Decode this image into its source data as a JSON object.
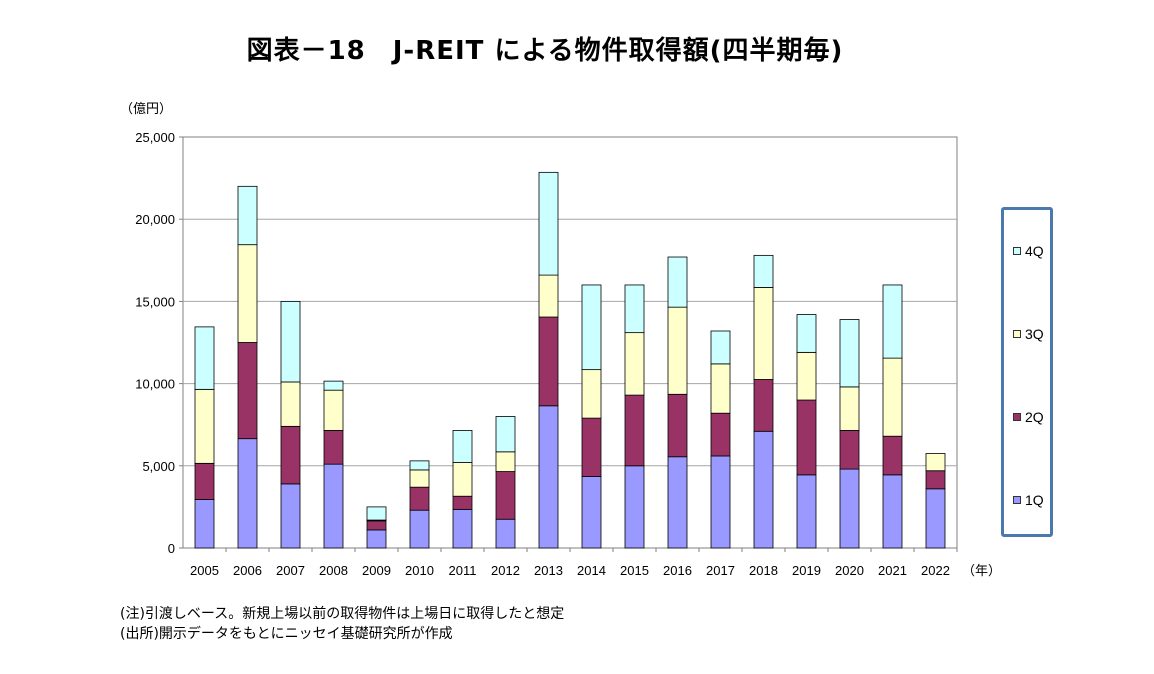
{
  "title": "図表－18　J-REIT による物件取得額(四半期毎)",
  "notes": {
    "note": "(注)引渡しベース。新規上場以前の取得物件は上場日に取得したと想定",
    "source": "(出所)開示データをもとにニッセイ基礎研究所が作成"
  },
  "chart_data": {
    "type": "bar",
    "stacked": true,
    "title": "図表－18　J-REIT による物件取得額(四半期毎)",
    "ylabel": "（億円）",
    "xlabel": "（年）",
    "ylim": [
      0,
      25000
    ],
    "yticks": [
      0,
      5000,
      10000,
      15000,
      20000,
      25000
    ],
    "ytick_labels": [
      "0",
      "5,000",
      "10,000",
      "15,000",
      "20,000",
      "25,000"
    ],
    "grid": true,
    "legend_position": "right",
    "categories": [
      "2005",
      "2006",
      "2007",
      "2008",
      "2009",
      "2010",
      "2011",
      "2012",
      "2013",
      "2014",
      "2015",
      "2016",
      "2017",
      "2018",
      "2019",
      "2020",
      "2021",
      "2022"
    ],
    "series": [
      {
        "name": "1Q",
        "color": "#9999ff",
        "values": [
          2950,
          6650,
          3900,
          5100,
          1100,
          2300,
          2350,
          1750,
          8650,
          4350,
          5000,
          5550,
          5600,
          7100,
          4450,
          4800,
          4450,
          3600
        ]
      },
      {
        "name": "2Q",
        "color": "#993366",
        "values": [
          2200,
          5850,
          3500,
          2050,
          550,
          1400,
          800,
          2900,
          5400,
          3550,
          4300,
          3800,
          2600,
          3150,
          4550,
          2350,
          2350,
          1100
        ]
      },
      {
        "name": "3Q",
        "color": "#ffffcc",
        "values": [
          4500,
          5950,
          2700,
          2450,
          50,
          1050,
          2050,
          1200,
          2550,
          2950,
          3800,
          5300,
          3000,
          5600,
          2900,
          2650,
          4750,
          1050
        ]
      },
      {
        "name": "4Q",
        "color": "#ccffff",
        "values": [
          3800,
          3550,
          4900,
          550,
          800,
          550,
          1950,
          2150,
          6250,
          5150,
          2900,
          3050,
          2000,
          1950,
          2300,
          4100,
          4450,
          0
        ]
      }
    ]
  }
}
